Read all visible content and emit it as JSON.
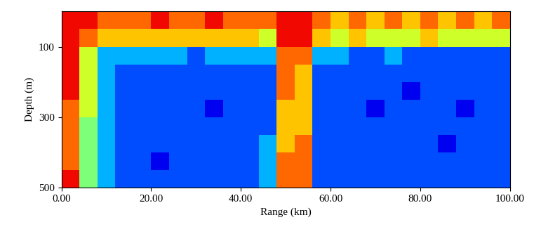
{
  "chart_data": {
    "type": "heatmap",
    "x_label": "Range (km)",
    "y_label": "Depth (m)",
    "x_edges": [
      0,
      4,
      8,
      12,
      16,
      20,
      24,
      28,
      32,
      36,
      40,
      44,
      48,
      52,
      56,
      60,
      64,
      68,
      72,
      76,
      80,
      84,
      88,
      92,
      96,
      100
    ],
    "y_edges": [
      0,
      50,
      100,
      150,
      200,
      250,
      300,
      350,
      400,
      450,
      500
    ],
    "cells": [
      [
        9,
        9,
        8,
        8,
        8,
        9,
        8,
        8,
        9,
        8,
        8,
        8,
        9,
        9,
        8,
        7,
        8,
        7,
        8,
        7,
        8,
        7,
        8,
        7,
        8
      ],
      [
        9,
        8,
        7,
        7,
        7,
        7,
        7,
        7,
        7,
        7,
        7,
        6,
        9,
        9,
        7,
        6,
        7,
        6,
        6,
        6,
        7,
        6,
        6,
        6,
        6
      ],
      [
        9,
        6,
        3,
        3,
        3,
        3,
        3,
        2,
        3,
        3,
        3,
        3,
        8,
        8,
        3,
        3,
        2,
        2,
        3,
        2,
        2,
        2,
        2,
        2,
        2
      ],
      [
        9,
        6,
        3,
        2,
        2,
        2,
        2,
        2,
        2,
        2,
        2,
        2,
        8,
        7,
        2,
        2,
        2,
        2,
        2,
        2,
        2,
        2,
        2,
        2,
        2
      ],
      [
        9,
        6,
        3,
        2,
        2,
        2,
        2,
        2,
        2,
        2,
        2,
        2,
        8,
        7,
        2,
        2,
        2,
        2,
        2,
        1,
        2,
        2,
        2,
        2,
        2
      ],
      [
        8,
        6,
        3,
        2,
        2,
        2,
        2,
        2,
        1,
        2,
        2,
        2,
        7,
        7,
        2,
        2,
        2,
        1,
        2,
        2,
        2,
        2,
        1,
        2,
        2
      ],
      [
        8,
        5,
        3,
        2,
        2,
        2,
        2,
        2,
        2,
        2,
        2,
        2,
        7,
        7,
        2,
        2,
        2,
        2,
        2,
        2,
        2,
        2,
        2,
        2,
        2
      ],
      [
        8,
        5,
        3,
        2,
        2,
        2,
        2,
        2,
        2,
        2,
        2,
        3,
        7,
        8,
        2,
        2,
        2,
        2,
        2,
        2,
        2,
        1,
        2,
        2,
        2
      ],
      [
        8,
        5,
        3,
        2,
        2,
        1,
        2,
        2,
        2,
        2,
        2,
        3,
        8,
        8,
        2,
        2,
        2,
        2,
        2,
        2,
        2,
        2,
        2,
        2,
        2
      ],
      [
        9,
        5,
        3,
        2,
        2,
        2,
        2,
        2,
        2,
        2,
        2,
        3,
        8,
        8,
        2,
        2,
        2,
        2,
        2,
        2,
        2,
        2,
        2,
        2,
        2
      ]
    ],
    "color_range": [
      0,
      10
    ],
    "xlim": [
      0,
      100
    ],
    "xticks": [
      {
        "value": 0,
        "label": "0.00"
      },
      {
        "value": 20,
        "label": "20.00"
      },
      {
        "value": 40,
        "label": "40.00"
      },
      {
        "value": 60,
        "label": "60.00"
      },
      {
        "value": 80,
        "label": "80.00"
      },
      {
        "value": 100,
        "label": "100.00"
      }
    ],
    "ylim": [
      500,
      0
    ],
    "yticks": [
      100,
      300,
      500
    ]
  }
}
